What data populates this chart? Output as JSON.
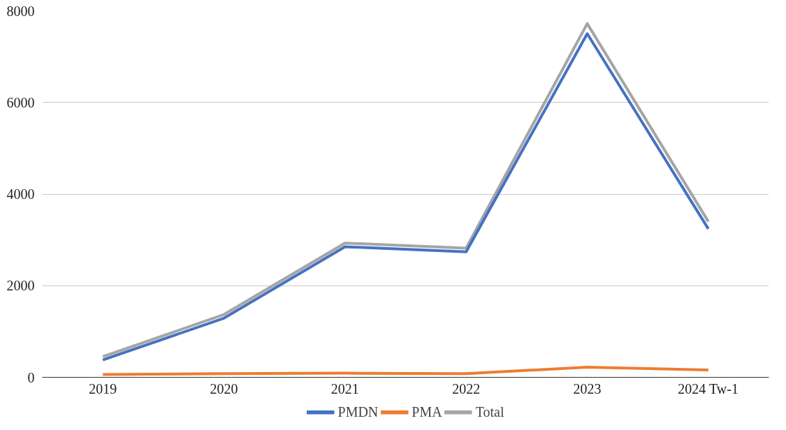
{
  "chart_data": {
    "type": "line",
    "categories": [
      "2019",
      "2020",
      "2021",
      "2022",
      "2023",
      "2024 Tw-1"
    ],
    "series": [
      {
        "name": "PMDN",
        "color": "#4472c4",
        "values": [
          380,
          1290,
          2850,
          2740,
          7500,
          3240
        ]
      },
      {
        "name": "PMA",
        "color": "#ed7d31",
        "values": [
          60,
          80,
          90,
          80,
          220,
          160
        ]
      },
      {
        "name": "Total",
        "color": "#a5a5a5",
        "values": [
          450,
          1370,
          2930,
          2820,
          7720,
          3400
        ]
      }
    ],
    "ylim": [
      0,
      8000
    ],
    "yticks": [
      0,
      2000,
      4000,
      6000,
      8000
    ],
    "grid": "y",
    "legend": "bottom",
    "marker": "none",
    "line_style": "solid"
  }
}
